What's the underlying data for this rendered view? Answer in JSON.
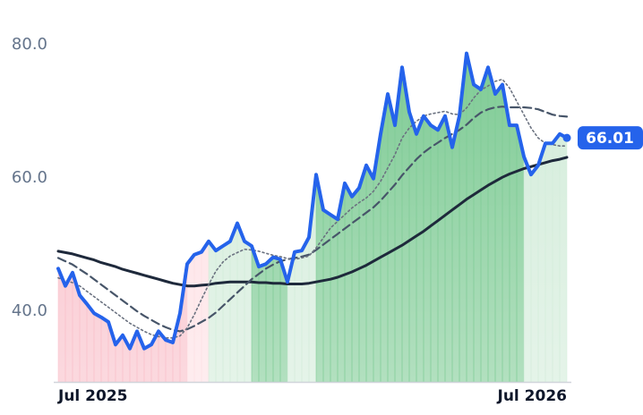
{
  "chart_data": {
    "type": "line",
    "categories": [
      "Jul 2025",
      null,
      null,
      null,
      null,
      null,
      null,
      null,
      null,
      null,
      null,
      null,
      null,
      null,
      null,
      null,
      null,
      null,
      null,
      null,
      null,
      null,
      null,
      null,
      null,
      null,
      null,
      null,
      null,
      null,
      null,
      null,
      null,
      null,
      null,
      null,
      null,
      null,
      null,
      null,
      null,
      null,
      null,
      null,
      null,
      null,
      null,
      null,
      null,
      null,
      null,
      null,
      null,
      null,
      null,
      null,
      null,
      null,
      null,
      null,
      null,
      null,
      null,
      null,
      null,
      null,
      null,
      null,
      null,
      null,
      null,
      "Jul 2026"
    ],
    "ylim": [
      29.4,
      86.7
    ],
    "yticks": [
      {
        "value": 40,
        "label": "40.0"
      },
      {
        "value": 60,
        "label": "60.0"
      },
      {
        "value": 80,
        "label": "80.0"
      }
    ],
    "grid": false,
    "series": [
      {
        "color": "#2563eb",
        "line_style": "solid",
        "last_label": true,
        "values": [
          46.4,
          43.8,
          45.8,
          42.4,
          41.1,
          39.7,
          39.1,
          38.4,
          35.0,
          36.4,
          34.4,
          37.0,
          34.4,
          35.0,
          37.0,
          35.7,
          35.3,
          39.7,
          47.1,
          48.5,
          48.9,
          50.5,
          49.1,
          49.8,
          50.5,
          53.2,
          50.5,
          49.8,
          46.7,
          47.1,
          48.1,
          47.8,
          44.4,
          48.9,
          49.1,
          51.1,
          60.5,
          55.2,
          54.5,
          53.8,
          59.2,
          57.2,
          58.5,
          61.9,
          59.9,
          66.6,
          72.6,
          67.9,
          76.6,
          69.9,
          66.6,
          69.3,
          67.9,
          67.2,
          69.3,
          64.6,
          69.3,
          78.7,
          74.0,
          73.3,
          76.6,
          72.6,
          74.0,
          67.9,
          67.9,
          63.2,
          60.5,
          61.9,
          65.2,
          65.2,
          66.6,
          66.01
        ],
        "fill_colors": [
          "#f9bfc9",
          "#f9bfc9",
          "#f9bfc9",
          "#f9bfc9",
          "#f9bfc9",
          "#f9bfc9",
          "#f9bfc9",
          "#f9bfc9",
          "#f9bfc9",
          "#f9bfc9",
          "#f9bfc9",
          "#f9bfc9",
          "#f9bfc9",
          "#f9bfc9",
          "#f9bfc9",
          "#f9bfc9",
          "#f9bfc9",
          "#f9bfc9",
          "#fde0e4",
          "#fde0e4",
          "#fde0e4",
          "#d3ecda",
          "#d3ecda",
          "#d3ecda",
          "#d3ecda",
          "#d3ecda",
          "#d3ecda",
          "#7fcb95",
          "#7fcb95",
          "#7fcb95",
          "#7fcb95",
          "#7fcb95",
          "#d3ecda",
          "#d3ecda",
          "#d3ecda",
          "#d3ecda",
          "#7fcb95",
          "#7fcb95",
          "#7fcb95",
          "#7fcb95",
          "#7fcb95",
          "#7fcb95",
          "#7fcb95",
          "#7fcb95",
          "#7fcb95",
          "#7fcb95",
          "#7fcb95",
          "#7fcb95",
          "#7fcb95",
          "#7fcb95",
          "#7fcb95",
          "#7fcb95",
          "#7fcb95",
          "#7fcb95",
          "#7fcb95",
          "#7fcb95",
          "#7fcb95",
          "#7fcb95",
          "#7fcb95",
          "#7fcb95",
          "#7fcb95",
          "#7fcb95",
          "#7fcb95",
          "#7fcb95",
          "#7fcb95",
          "#d3ecda",
          "#d3ecda",
          "#d3ecda",
          "#d3ecda",
          "#d3ecda",
          "#d3ecda",
          "#d3ecda"
        ]
      },
      {
        "color": "#6b7280",
        "line_style": "dotted",
        "values": [
          45.0,
          44.6,
          44.3,
          43.8,
          43.0,
          42.2,
          41.4,
          40.6,
          39.8,
          39.0,
          38.2,
          37.6,
          37.0,
          36.5,
          36.2,
          36.0,
          36.0,
          36.3,
          37.5,
          39.5,
          41.8,
          44.0,
          46.0,
          47.4,
          48.3,
          48.8,
          49.3,
          49.2,
          49.0,
          48.7,
          48.4,
          48.2,
          47.9,
          47.8,
          48.0,
          48.3,
          49.5,
          51.0,
          52.5,
          53.5,
          54.5,
          55.5,
          56.3,
          57.0,
          58.0,
          59.5,
          61.5,
          63.5,
          66.0,
          67.5,
          68.5,
          69.3,
          69.6,
          69.8,
          70.0,
          69.6,
          69.5,
          70.5,
          72.0,
          73.2,
          73.8,
          74.5,
          74.8,
          73.5,
          71.5,
          69.5,
          67.5,
          66.0,
          65.2,
          65.0,
          64.8,
          64.8
        ]
      },
      {
        "color": "#475569",
        "line_style": "dashed",
        "values": [
          48.0,
          47.5,
          47.0,
          46.3,
          45.6,
          44.8,
          44.0,
          43.2,
          42.4,
          41.6,
          40.8,
          40.0,
          39.3,
          38.7,
          38.1,
          37.6,
          37.2,
          37.0,
          37.3,
          37.8,
          38.4,
          39.0,
          39.8,
          40.8,
          41.8,
          42.8,
          43.8,
          44.8,
          45.6,
          46.4,
          47.0,
          47.5,
          47.8,
          48.0,
          48.2,
          48.5,
          49.2,
          50.0,
          50.8,
          51.6,
          52.4,
          53.2,
          54.0,
          54.8,
          55.6,
          56.6,
          57.8,
          59.0,
          60.4,
          61.6,
          62.8,
          63.8,
          64.6,
          65.3,
          66.0,
          66.6,
          67.2,
          68.0,
          69.0,
          69.8,
          70.3,
          70.6,
          70.7,
          70.6,
          70.6,
          70.6,
          70.5,
          70.3,
          69.9,
          69.5,
          69.3,
          69.2
        ]
      },
      {
        "color": "#1e293b",
        "line_style": "solid",
        "values": [
          49.0,
          48.8,
          48.6,
          48.3,
          48.0,
          47.7,
          47.3,
          47.0,
          46.7,
          46.3,
          46.0,
          45.7,
          45.4,
          45.1,
          44.8,
          44.5,
          44.2,
          44.0,
          43.8,
          43.8,
          43.9,
          44.0,
          44.2,
          44.3,
          44.4,
          44.4,
          44.4,
          44.4,
          44.3,
          44.3,
          44.2,
          44.2,
          44.1,
          44.1,
          44.1,
          44.2,
          44.4,
          44.6,
          44.8,
          45.1,
          45.5,
          45.9,
          46.4,
          46.9,
          47.5,
          48.1,
          48.7,
          49.3,
          49.9,
          50.6,
          51.3,
          52.0,
          52.8,
          53.6,
          54.4,
          55.2,
          56.0,
          56.8,
          57.5,
          58.2,
          58.9,
          59.5,
          60.1,
          60.6,
          61.0,
          61.4,
          61.7,
          62.0,
          62.3,
          62.6,
          62.8,
          63.1
        ]
      }
    ]
  }
}
